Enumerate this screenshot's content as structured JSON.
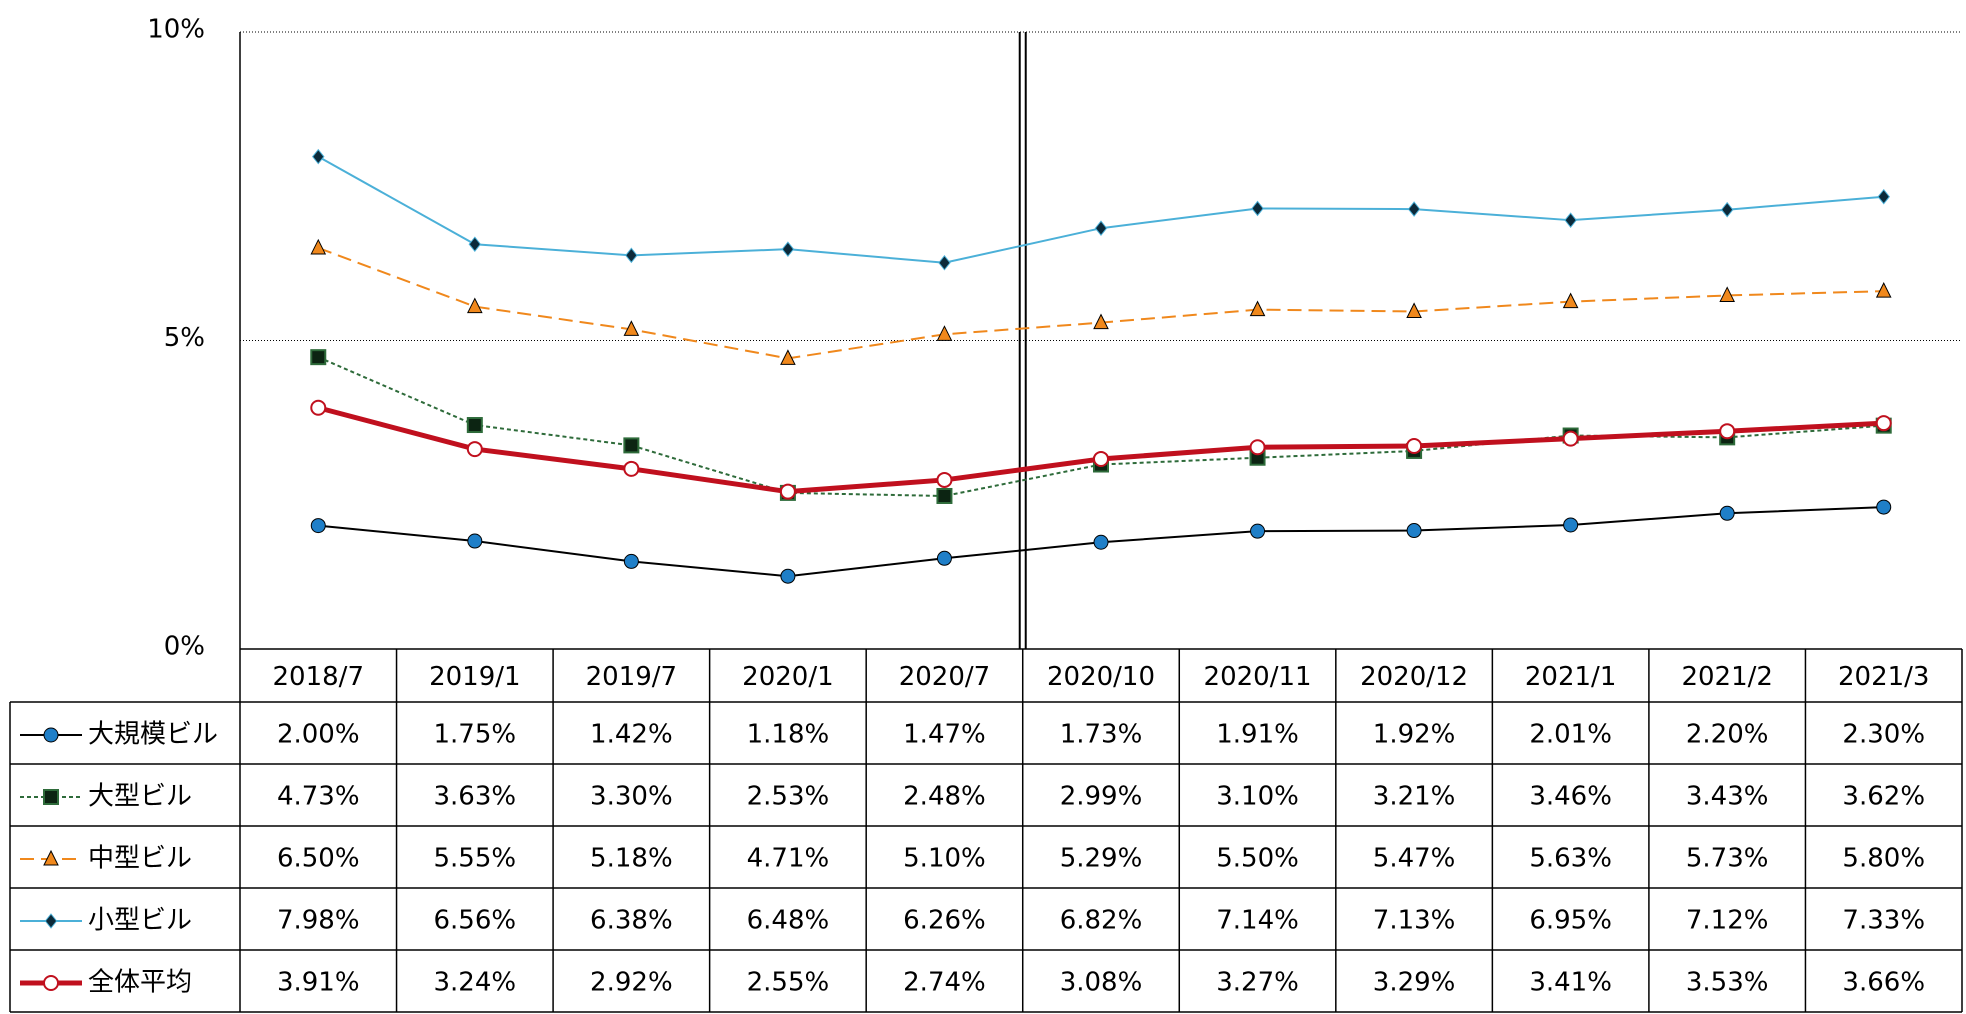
{
  "chart_data": {
    "type": "line",
    "categories": [
      "2018/7",
      "2019/1",
      "2019/7",
      "2020/1",
      "2020/7",
      "2020/10",
      "2020/11",
      "2020/12",
      "2021/1",
      "2021/2",
      "2021/3"
    ],
    "ylim": [
      0,
      10
    ],
    "yticks": [
      {
        "value": 0,
        "label": "0%"
      },
      {
        "value": 5,
        "label": "5%"
      },
      {
        "value": 10,
        "label": "10%"
      }
    ],
    "grid": true,
    "series": [
      {
        "name": "大規模ビル",
        "color": "#000000",
        "marker": "circle",
        "marker_color": "#1f7fc8",
        "line_style": "solid",
        "values": [
          2.0,
          1.75,
          1.42,
          1.18,
          1.47,
          1.73,
          1.91,
          1.92,
          2.01,
          2.2,
          2.3
        ],
        "value_labels": [
          "2.00%",
          "1.75%",
          "1.42%",
          "1.18%",
          "1.47%",
          "1.73%",
          "1.91%",
          "1.92%",
          "2.01%",
          "2.20%",
          "2.30%"
        ]
      },
      {
        "name": "大型ビル",
        "color": "#2e6b3a",
        "marker": "square",
        "marker_color": "#0c2412",
        "line_style": "dotted",
        "values": [
          4.73,
          3.63,
          3.3,
          2.53,
          2.48,
          2.99,
          3.1,
          3.21,
          3.46,
          3.43,
          3.62
        ],
        "value_labels": [
          "4.73%",
          "3.63%",
          "3.30%",
          "2.53%",
          "2.48%",
          "2.99%",
          "3.10%",
          "3.21%",
          "3.46%",
          "3.43%",
          "3.62%"
        ]
      },
      {
        "name": "中型ビル",
        "color": "#f0881c",
        "marker": "triangle",
        "marker_color": "#f0881c",
        "line_style": "dashed",
        "values": [
          6.5,
          5.55,
          5.18,
          4.71,
          5.1,
          5.29,
          5.5,
          5.47,
          5.63,
          5.73,
          5.8
        ],
        "value_labels": [
          "6.50%",
          "5.55%",
          "5.18%",
          "4.71%",
          "5.10%",
          "5.29%",
          "5.50%",
          "5.47%",
          "5.63%",
          "5.73%",
          "5.80%"
        ]
      },
      {
        "name": "小型ビル",
        "color": "#4bb0d8",
        "marker": "diamond",
        "marker_color": "#0c2a3a",
        "line_style": "solid",
        "values": [
          7.98,
          6.56,
          6.38,
          6.48,
          6.26,
          6.82,
          7.14,
          7.13,
          6.95,
          7.12,
          7.33
        ],
        "value_labels": [
          "7.98%",
          "6.56%",
          "6.38%",
          "6.48%",
          "6.26%",
          "6.82%",
          "7.14%",
          "7.13%",
          "6.95%",
          "7.12%",
          "7.33%"
        ]
      },
      {
        "name": "全体平均",
        "color": "#c0101e",
        "marker": "circle",
        "marker_color": "#ffffff",
        "line_style": "thick",
        "values": [
          3.91,
          3.24,
          2.92,
          2.55,
          2.74,
          3.08,
          3.27,
          3.29,
          3.41,
          3.53,
          3.66
        ],
        "value_labels": [
          "3.91%",
          "3.24%",
          "2.92%",
          "2.55%",
          "2.74%",
          "3.08%",
          "3.27%",
          "3.29%",
          "3.41%",
          "3.53%",
          "3.66%"
        ]
      }
    ]
  }
}
